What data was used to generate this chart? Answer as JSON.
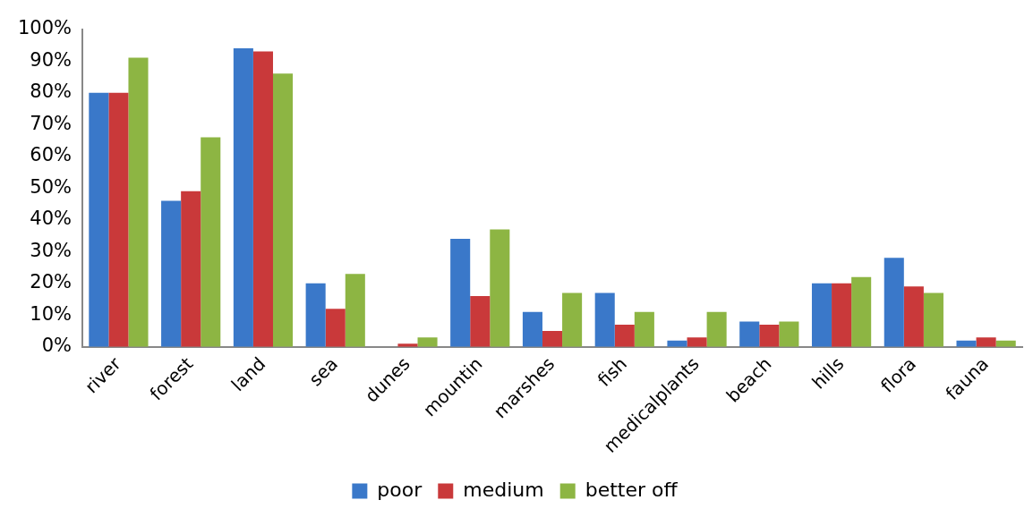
{
  "chart_data": {
    "type": "bar",
    "categories": [
      "river",
      "forest",
      "land",
      "sea",
      "dunes",
      "mountin",
      "marshes",
      "fish",
      "medicalplants",
      "beach",
      "hills",
      "flora",
      "fauna"
    ],
    "series": [
      {
        "name": "poor",
        "color": "#3a78c9",
        "values": [
          80,
          46,
          94,
          20,
          0,
          34,
          11,
          17,
          2,
          8,
          20,
          28,
          2
        ]
      },
      {
        "name": "medium",
        "color": "#c9393a",
        "values": [
          80,
          49,
          93,
          12,
          1,
          16,
          5,
          7,
          3,
          7,
          20,
          19,
          3
        ]
      },
      {
        "name": "better off",
        "color": "#8db543",
        "values": [
          91,
          66,
          86,
          23,
          3,
          37,
          17,
          11,
          11,
          8,
          22,
          17,
          2
        ]
      }
    ],
    "ylim": [
      0,
      100
    ],
    "yticks": [
      {
        "value": 0,
        "label": "0%"
      },
      {
        "value": 10,
        "label": "10%"
      },
      {
        "value": 20,
        "label": "20%"
      },
      {
        "value": 30,
        "label": "30%"
      },
      {
        "value": 40,
        "label": "40%"
      },
      {
        "value": 50,
        "label": "50%"
      },
      {
        "value": 60,
        "label": "60%"
      },
      {
        "value": 70,
        "label": "70%"
      },
      {
        "value": 80,
        "label": "80%"
      },
      {
        "value": 90,
        "label": "90%"
      },
      {
        "value": 100,
        "label": "100%"
      }
    ],
    "grid": false,
    "legend": "bottom"
  }
}
